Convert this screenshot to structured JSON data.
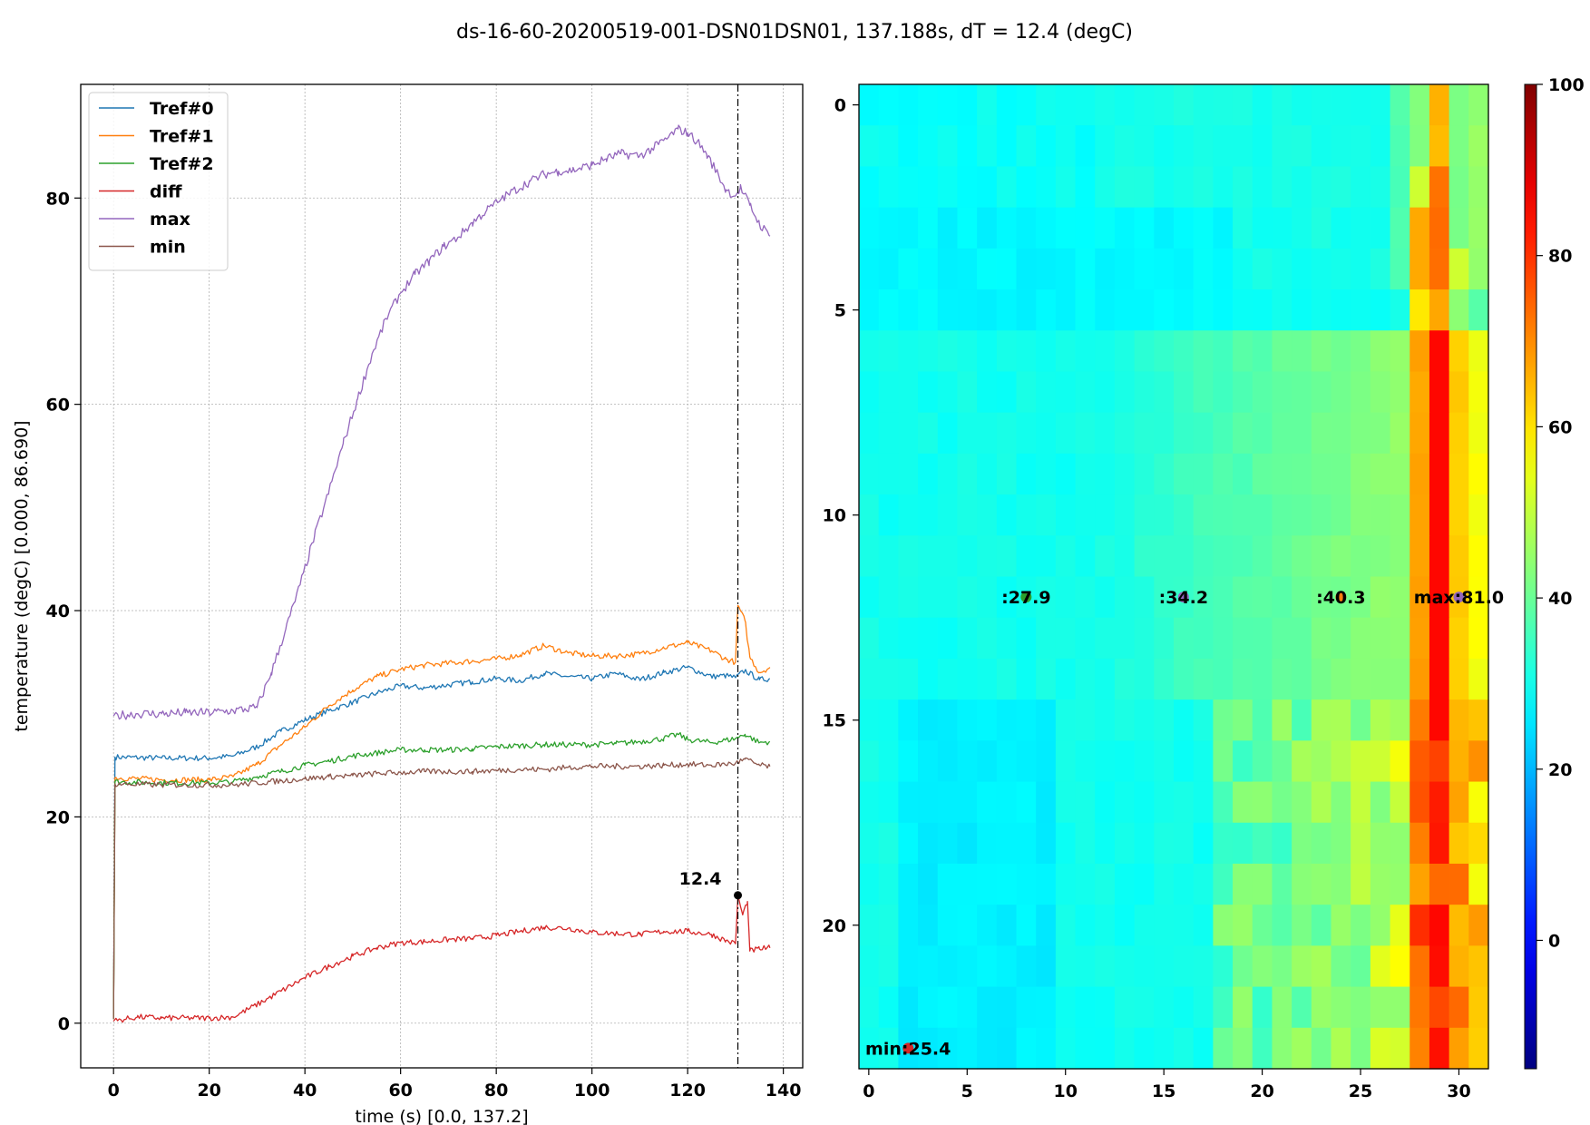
{
  "title": "ds-16-60-20200519-001-DSN01DSN01, 137.188s, dT = 12.4 (degC)",
  "chart_data": [
    {
      "type": "line",
      "xlabel": "time (s) [0.0, 137.2]",
      "ylabel": "temperature (degC) [0.000, 86.690]",
      "xlim": [
        -6.86,
        144.05
      ],
      "ylim": [
        -4.33,
        91.02
      ],
      "xticks": [
        "0",
        "20",
        "40",
        "60",
        "80",
        "100",
        "120",
        "140"
      ],
      "yticks": [
        "0",
        "20",
        "40",
        "60",
        "80"
      ],
      "grid": true,
      "legend_position": "upper-left",
      "vline_x": 130.5,
      "marker": {
        "x": 130.5,
        "y": 12.4,
        "label": "12.4"
      },
      "series": [
        {
          "name": "Tref#0",
          "color": "#1f77b4",
          "points": [
            [
              0,
              0.4
            ],
            [
              0.3,
              25.8
            ],
            [
              10,
              25.7
            ],
            [
              20,
              25.7
            ],
            [
              25,
              25.9
            ],
            [
              30,
              26.8
            ],
            [
              35,
              28.3
            ],
            [
              40,
              29.4
            ],
            [
              45,
              30.3
            ],
            [
              50,
              31.1
            ],
            [
              55,
              32.0
            ],
            [
              60,
              32.7
            ],
            [
              65,
              32.5
            ],
            [
              70,
              32.8
            ],
            [
              75,
              33.1
            ],
            [
              80,
              33.4
            ],
            [
              85,
              33.2
            ],
            [
              90,
              33.9
            ],
            [
              95,
              33.6
            ],
            [
              100,
              33.4
            ],
            [
              105,
              33.9
            ],
            [
              110,
              33.3
            ],
            [
              115,
              34.0
            ],
            [
              120,
              34.5
            ],
            [
              125,
              33.6
            ],
            [
              128,
              33.7
            ],
            [
              130,
              33.5
            ],
            [
              132,
              34.2
            ],
            [
              135,
              33.3
            ],
            [
              137.2,
              33.4
            ]
          ]
        },
        {
          "name": "Tref#1",
          "color": "#ff7f0e",
          "points": [
            [
              0,
              0.4
            ],
            [
              0.3,
              23.8
            ],
            [
              10,
              23.6
            ],
            [
              20,
              23.6
            ],
            [
              25,
              23.9
            ],
            [
              30,
              25.1
            ],
            [
              35,
              27.0
            ],
            [
              40,
              28.7
            ],
            [
              45,
              30.8
            ],
            [
              50,
              32.3
            ],
            [
              55,
              33.6
            ],
            [
              60,
              34.3
            ],
            [
              65,
              34.7
            ],
            [
              70,
              34.9
            ],
            [
              75,
              35.1
            ],
            [
              80,
              35.3
            ],
            [
              85,
              35.7
            ],
            [
              90,
              36.6
            ],
            [
              95,
              35.9
            ],
            [
              100,
              35.6
            ],
            [
              105,
              35.6
            ],
            [
              110,
              35.8
            ],
            [
              115,
              36.4
            ],
            [
              120,
              36.9
            ],
            [
              125,
              36.1
            ],
            [
              128,
              35.3
            ],
            [
              130,
              35.0
            ],
            [
              130.5,
              40.5
            ],
            [
              132,
              39.0
            ],
            [
              133,
              35.5
            ],
            [
              135,
              34.0
            ],
            [
              137.2,
              34.5
            ]
          ]
        },
        {
          "name": "Tref#2",
          "color": "#2ca02c",
          "points": [
            [
              0,
              0.4
            ],
            [
              0.3,
              23.4
            ],
            [
              10,
              23.3
            ],
            [
              20,
              23.3
            ],
            [
              25,
              23.4
            ],
            [
              30,
              23.9
            ],
            [
              35,
              24.4
            ],
            [
              40,
              25.0
            ],
            [
              45,
              25.4
            ],
            [
              50,
              25.9
            ],
            [
              55,
              26.2
            ],
            [
              60,
              26.5
            ],
            [
              65,
              26.5
            ],
            [
              70,
              26.5
            ],
            [
              75,
              26.6
            ],
            [
              80,
              26.8
            ],
            [
              85,
              26.9
            ],
            [
              90,
              27.0
            ],
            [
              95,
              27.0
            ],
            [
              100,
              27.0
            ],
            [
              105,
              27.1
            ],
            [
              110,
              27.3
            ],
            [
              115,
              27.6
            ],
            [
              118,
              28.0
            ],
            [
              120,
              27.5
            ],
            [
              125,
              27.2
            ],
            [
              130,
              27.6
            ],
            [
              132,
              28.0
            ],
            [
              135,
              27.2
            ],
            [
              137.2,
              27.3
            ]
          ]
        },
        {
          "name": "diff",
          "color": "#d62728",
          "points": [
            [
              0,
              0.2
            ],
            [
              5,
              0.6
            ],
            [
              10,
              0.5
            ],
            [
              20,
              0.5
            ],
            [
              25,
              0.6
            ],
            [
              30,
              1.8
            ],
            [
              35,
              3.1
            ],
            [
              40,
              4.4
            ],
            [
              45,
              5.5
            ],
            [
              50,
              6.5
            ],
            [
              55,
              7.3
            ],
            [
              60,
              7.8
            ],
            [
              65,
              7.9
            ],
            [
              70,
              8.1
            ],
            [
              75,
              8.2
            ],
            [
              80,
              8.5
            ],
            [
              85,
              8.9
            ],
            [
              90,
              9.3
            ],
            [
              95,
              9.2
            ],
            [
              100,
              8.8
            ],
            [
              105,
              8.7
            ],
            [
              110,
              8.6
            ],
            [
              115,
              8.9
            ],
            [
              120,
              8.9
            ],
            [
              125,
              8.6
            ],
            [
              128,
              8.0
            ],
            [
              130,
              7.7
            ],
            [
              130.5,
              12.3
            ],
            [
              131.5,
              10.5
            ],
            [
              132.5,
              11.8
            ],
            [
              133,
              7.0
            ],
            [
              135,
              7.2
            ],
            [
              137.2,
              7.3
            ]
          ]
        },
        {
          "name": "max",
          "color": "#9467bd",
          "points": [
            [
              0,
              29.8
            ],
            [
              5,
              30.0
            ],
            [
              10,
              30.0
            ],
            [
              15,
              30.1
            ],
            [
              20,
              30.1
            ],
            [
              25,
              30.3
            ],
            [
              30,
              30.6
            ],
            [
              33,
              34.0
            ],
            [
              36,
              38.2
            ],
            [
              39,
              42.5
            ],
            [
              42,
              47.2
            ],
            [
              45,
              51.5
            ],
            [
              48,
              56.2
            ],
            [
              51,
              60.5
            ],
            [
              54,
              64.8
            ],
            [
              57,
              68.3
            ],
            [
              60,
              70.8
            ],
            [
              63,
              72.6
            ],
            [
              66,
              73.9
            ],
            [
              69,
              75.3
            ],
            [
              72,
              76.2
            ],
            [
              75,
              77.6
            ],
            [
              78,
              78.8
            ],
            [
              81,
              79.9
            ],
            [
              84,
              80.8
            ],
            [
              87,
              81.6
            ],
            [
              90,
              82.3
            ],
            [
              93,
              82.6
            ],
            [
              96,
              82.7
            ],
            [
              100,
              83.2
            ],
            [
              103,
              83.8
            ],
            [
              106,
              84.3
            ],
            [
              110,
              84.1
            ],
            [
              113,
              84.9
            ],
            [
              116,
              85.9
            ],
            [
              118,
              86.7
            ],
            [
              120,
              86.3
            ],
            [
              122,
              85.5
            ],
            [
              124,
              84.2
            ],
            [
              126,
              82.6
            ],
            [
              128,
              80.8
            ],
            [
              130,
              80.2
            ],
            [
              131,
              81.0
            ],
            [
              133,
              79.3
            ],
            [
              135,
              77.5
            ],
            [
              137.2,
              76.3
            ]
          ]
        },
        {
          "name": "min",
          "color": "#8c564b",
          "points": [
            [
              0,
              0.4
            ],
            [
              0.3,
              23.2
            ],
            [
              10,
              23.1
            ],
            [
              20,
              23.1
            ],
            [
              25,
              23.1
            ],
            [
              30,
              23.3
            ],
            [
              35,
              23.5
            ],
            [
              40,
              23.7
            ],
            [
              45,
              23.9
            ],
            [
              50,
              24.0
            ],
            [
              55,
              24.2
            ],
            [
              60,
              24.3
            ],
            [
              65,
              24.4
            ],
            [
              70,
              24.4
            ],
            [
              75,
              24.4
            ],
            [
              80,
              24.5
            ],
            [
              85,
              24.6
            ],
            [
              90,
              24.6
            ],
            [
              95,
              24.8
            ],
            [
              100,
              24.9
            ],
            [
              105,
              24.9
            ],
            [
              110,
              24.9
            ],
            [
              115,
              25.0
            ],
            [
              120,
              25.1
            ],
            [
              125,
              25.0
            ],
            [
              130,
              25.2
            ],
            [
              132,
              25.6
            ],
            [
              135,
              25.0
            ],
            [
              137.2,
              24.9
            ]
          ]
        }
      ]
    },
    {
      "type": "heatmap",
      "xticks": [
        "0",
        "5",
        "10",
        "15",
        "20",
        "25",
        "30"
      ],
      "yticks": [
        "0",
        "5",
        "10",
        "15",
        "20"
      ],
      "xlim": [
        -0.5,
        31.5
      ],
      "ylim": [
        23.5,
        -0.5
      ],
      "n_cols": 32,
      "n_rows": 24,
      "colormap": "jet",
      "clim": [
        -15,
        100
      ],
      "colorbar_ticks": [
        "0",
        "20",
        "40",
        "60",
        "80",
        "100"
      ],
      "annotations": [
        {
          "x": 2,
          "y": 23,
          "label": "min:25.4",
          "marker_color": "#d62728"
        },
        {
          "x": 8,
          "y": 12,
          "label": ":27.9",
          "marker_color": "#2ca02c"
        },
        {
          "x": 16,
          "y": 12,
          "label": ":34.2",
          "marker_color": "#9467bd"
        },
        {
          "x": 24,
          "y": 12,
          "label": ":40.3",
          "marker_color": "#ff7f0e"
        },
        {
          "x": 30,
          "y": 12,
          "label": "max:81.0",
          "marker_color": "#9467bd"
        }
      ]
    }
  ]
}
